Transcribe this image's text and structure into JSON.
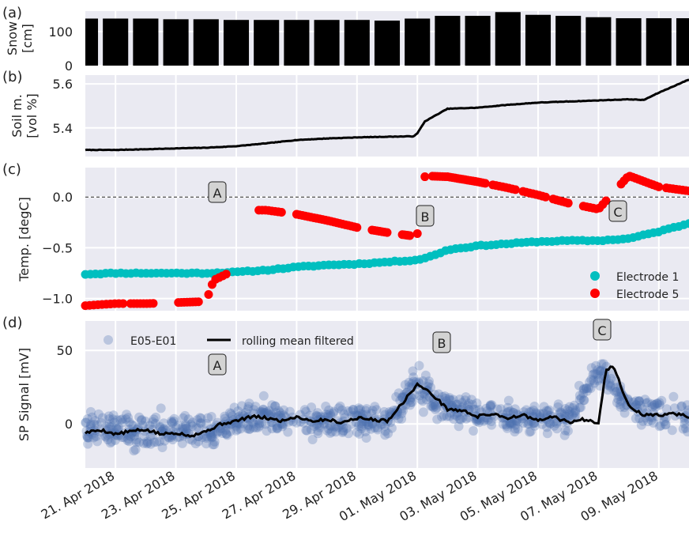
{
  "x_axis": {
    "start": "2018-04-20T00:00",
    "end": "2018-05-10T00:00",
    "tick_labels": [
      "21. Apr 2018",
      "23. Apr 2018",
      "25. Apr 2018",
      "27. Apr 2018",
      "29. Apr 2018",
      "01. May 2018",
      "03. May 2018",
      "05. May 2018",
      "07. May 2018",
      "09. May 2018"
    ],
    "tick_dates": [
      "2018-04-21",
      "2018-04-23",
      "2018-04-25",
      "2018-04-27",
      "2018-04-29",
      "2018-05-01",
      "2018-05-03",
      "2018-05-05",
      "2018-05-07",
      "2018-05-09"
    ]
  },
  "colors": {
    "panel_bg": "#eaeaf2",
    "grid": "#ffffff",
    "snow": "#000000",
    "soil": "#000000",
    "electrode1": "#00bfbf",
    "electrode5": "#ff0000",
    "sp_points": "#4c72b0",
    "sp_line": "#000000"
  },
  "chart_data": [
    {
      "panel_label": "(a)",
      "type": "bar",
      "ylabel": "Snow\n[cm]",
      "ylim": [
        0,
        160
      ],
      "yticks": [
        0,
        100
      ],
      "grid": true,
      "series": [
        {
          "dates": [
            "2018-04-20",
            "2018-04-21",
            "2018-04-22",
            "2018-04-23",
            "2018-04-24",
            "2018-04-25",
            "2018-04-26",
            "2018-04-27",
            "2018-04-28",
            "2018-04-29",
            "2018-04-30",
            "2018-05-01",
            "2018-05-02",
            "2018-05-03",
            "2018-05-04",
            "2018-05-05",
            "2018-05-06",
            "2018-05-07",
            "2018-05-08",
            "2018-05-09",
            "2018-05-10"
          ],
          "values": [
            138,
            138,
            138,
            136,
            136,
            134,
            134,
            134,
            134,
            134,
            132,
            138,
            146,
            146,
            157,
            149,
            146,
            142,
            139,
            139,
            139
          ]
        }
      ]
    },
    {
      "panel_label": "(b)",
      "type": "line",
      "ylabel": "Soil m.\n[vol %]",
      "ylim": [
        5.27,
        5.64
      ],
      "yticks": [
        5.4,
        5.6
      ],
      "grid": true,
      "series": [
        {
          "x": [
            "2018-04-20",
            "2018-04-21",
            "2018-04-22",
            "2018-04-23",
            "2018-04-24",
            "2018-04-25",
            "2018-04-26",
            "2018-04-27",
            "2018-04-28",
            "2018-04-29",
            "2018-04-30",
            "2018-04-30T21:00",
            "2018-05-01T00:00",
            "2018-05-01T06:00",
            "2018-05-02",
            "2018-05-03",
            "2018-05-04",
            "2018-05-05",
            "2018-05-06",
            "2018-05-07",
            "2018-05-08",
            "2018-05-08T12:00",
            "2018-05-09",
            "2018-05-10"
          ],
          "y": [
            5.3,
            5.3,
            5.303,
            5.307,
            5.31,
            5.317,
            5.33,
            5.345,
            5.352,
            5.357,
            5.36,
            5.362,
            5.375,
            5.43,
            5.487,
            5.492,
            5.505,
            5.515,
            5.52,
            5.525,
            5.53,
            5.527,
            5.56,
            5.62
          ]
        }
      ]
    },
    {
      "panel_label": "(c)",
      "type": "scatter",
      "ylabel": "Temp. [degC]",
      "ylim": [
        -1.12,
        0.29
      ],
      "yticks": [
        0.0,
        -0.5,
        -1.0
      ],
      "ytick_labels": [
        "0.0",
        "−0.5",
        "−1.0"
      ],
      "reference_line_y": 0.0,
      "grid": true,
      "legend": [
        "Electrode 1",
        "Electrode 5"
      ],
      "legend_position": "lower-right",
      "annotations": [
        "A",
        "B",
        "C"
      ],
      "series": [
        {
          "name": "Electrode 1",
          "x": [
            "2018-04-20",
            "2018-04-21",
            "2018-04-22",
            "2018-04-23",
            "2018-04-24",
            "2018-04-25",
            "2018-04-26",
            "2018-04-27",
            "2018-04-28",
            "2018-04-29",
            "2018-04-30",
            "2018-05-01",
            "2018-05-01T12:00",
            "2018-05-02",
            "2018-05-03",
            "2018-05-04",
            "2018-05-05",
            "2018-05-06",
            "2018-05-07",
            "2018-05-08",
            "2018-05-09",
            "2018-05-10"
          ],
          "y": [
            -0.76,
            -0.75,
            -0.75,
            -0.75,
            -0.75,
            -0.74,
            -0.72,
            -0.69,
            -0.67,
            -0.66,
            -0.64,
            -0.62,
            -0.58,
            -0.52,
            -0.48,
            -0.46,
            -0.44,
            -0.43,
            -0.43,
            -0.41,
            -0.34,
            -0.26
          ]
        },
        {
          "name": "Electrode 5",
          "x": [
            "2018-04-20",
            "2018-04-21",
            "2018-04-21T06:00",
            "2018-04-22",
            "2018-04-23",
            "2018-04-24",
            "2018-04-24T06:00",
            "2018-04-24T16:00",
            "2018-04-25",
            "2018-04-25T18:00",
            "2018-04-26",
            "2018-04-27",
            "2018-04-28",
            "2018-04-29",
            "2018-04-30",
            "2018-04-30T18:00",
            "2018-05-01",
            "2018-05-02",
            "2018-05-03",
            "2018-05-04",
            "2018-05-05",
            "2018-05-06",
            "2018-05-07",
            "2018-05-08",
            "2018-05-09",
            "2018-05-10"
          ],
          "y": [
            -1.07,
            -1.05,
            -1.05,
            -1.05,
            -1.04,
            -1.03,
            -0.82,
            -0.76,
            -0.65,
            -0.13,
            -0.13,
            -0.17,
            -0.23,
            -0.3,
            -0.35,
            -0.38,
            0.21,
            0.2,
            0.15,
            0.09,
            0.02,
            -0.06,
            -0.12,
            0.21,
            0.1,
            0.06
          ]
        }
      ]
    },
    {
      "panel_label": "(d)",
      "type": "line",
      "ylabel": "SP Signal [mV]",
      "ylim": [
        -30,
        70
      ],
      "yticks": [
        0,
        50
      ],
      "grid": true,
      "legend": [
        "E05-E01",
        "rolling mean filtered"
      ],
      "legend_position": "top-left",
      "annotations": [
        "A",
        "B",
        "C"
      ],
      "series": [
        {
          "name": "E05-E01",
          "x": [
            "2018-04-20",
            "2018-04-21",
            "2018-04-22",
            "2018-04-23",
            "2018-04-24",
            "2018-04-25",
            "2018-04-26",
            "2018-04-27",
            "2018-04-28",
            "2018-04-29",
            "2018-04-30",
            "2018-05-01",
            "2018-05-02",
            "2018-05-03",
            "2018-05-04",
            "2018-05-05",
            "2018-05-06",
            "2018-05-07",
            "2018-05-08",
            "2018-05-09",
            "2018-05-10"
          ],
          "y": [
            -5,
            -4,
            -6,
            -3,
            -5,
            2,
            5,
            3,
            1,
            4,
            2,
            27,
            10,
            6,
            3,
            5,
            2,
            38,
            12,
            6,
            5
          ],
          "spread": [
            12,
            14,
            13,
            12,
            13,
            12,
            11,
            12,
            13,
            12,
            11,
            12,
            12,
            11,
            10,
            11,
            12,
            10,
            11,
            12,
            12
          ]
        },
        {
          "name": "rolling mean filtered",
          "x": [
            "2018-04-20",
            "2018-04-20T12:00",
            "2018-04-21",
            "2018-04-21T12:00",
            "2018-04-22",
            "2018-04-22T12:00",
            "2018-04-23",
            "2018-04-23T12:00",
            "2018-04-24",
            "2018-04-24T12:00",
            "2018-04-25",
            "2018-04-25T12:00",
            "2018-04-26",
            "2018-04-26T12:00",
            "2018-04-27",
            "2018-04-27T12:00",
            "2018-04-28",
            "2018-04-28T12:00",
            "2018-04-29",
            "2018-04-29T12:00",
            "2018-04-30",
            "2018-04-30T12:00",
            "2018-05-01",
            "2018-05-01T12:00",
            "2018-05-02",
            "2018-05-02T12:00",
            "2018-05-03",
            "2018-05-03T12:00",
            "2018-05-04",
            "2018-05-04T12:00",
            "2018-05-05",
            "2018-05-05T12:00",
            "2018-05-06",
            "2018-05-06T12:00",
            "2018-05-07",
            "2018-05-07T06:00",
            "2018-05-07T12:00",
            "2018-05-08",
            "2018-05-08T12:00",
            "2018-05-09",
            "2018-05-09T12:00",
            "2018-05-10"
          ],
          "y": [
            -6,
            -4,
            -7,
            -5,
            -4,
            -7,
            -6,
            -8,
            -5,
            0,
            2,
            5,
            4,
            2,
            5,
            2,
            3,
            1,
            4,
            3,
            2,
            14,
            27,
            20,
            10,
            9,
            5,
            7,
            4,
            6,
            2,
            5,
            1,
            3,
            1,
            37,
            39,
            12,
            6,
            6,
            7,
            5
          ]
        }
      ]
    }
  ]
}
